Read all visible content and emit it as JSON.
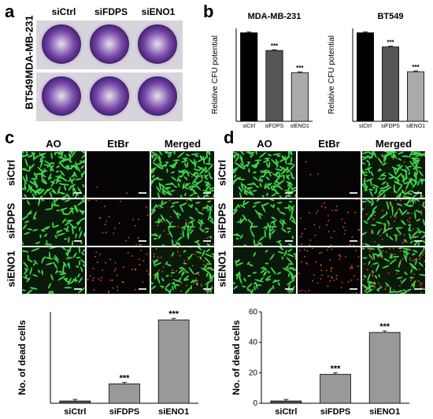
{
  "panels": {
    "a": "a",
    "b": "b",
    "c": "c",
    "d": "d"
  },
  "panel_a": {
    "columns": [
      "siCtrl",
      "siFDPS",
      "siENO1"
    ],
    "rows": [
      "MDA-MB-231",
      "BT549"
    ]
  },
  "panel_cd": {
    "columns": [
      "AO",
      "EtBr",
      "Merged"
    ],
    "rows": [
      "siCtrl",
      "siFDPS",
      "siENO1"
    ]
  },
  "chart_data": [
    {
      "id": "b1",
      "type": "bar",
      "title": "MDA-MB-231",
      "ylabel": "Relative CFU potential",
      "categories": [
        "siCtrl",
        "siFDPS",
        "siENO1"
      ],
      "values": [
        100,
        80,
        55
      ],
      "ylim": [
        0,
        105
      ],
      "colors": [
        "#000000",
        "#555555",
        "#aaaaaa"
      ],
      "annotations": [
        "",
        "***",
        "***"
      ]
    },
    {
      "id": "b2",
      "type": "bar",
      "title": "BT549",
      "ylabel": "Relative CFU potential",
      "categories": [
        "siCtrl",
        "siFDPS",
        "siENO1"
      ],
      "values": [
        100,
        84,
        56
      ],
      "ylim": [
        0,
        105
      ],
      "colors": [
        "#000000",
        "#555555",
        "#aaaaaa"
      ],
      "annotations": [
        "",
        "***",
        "***"
      ]
    },
    {
      "id": "c",
      "type": "bar",
      "title": "",
      "ylabel": "No. of dead cells",
      "categories": [
        "siCtrl",
        "siFDPS",
        "siENO1"
      ],
      "values": [
        1,
        8.5,
        36.5
      ],
      "ylim": [
        0,
        40
      ],
      "colors": [
        "#555555",
        "#999999",
        "#999999"
      ],
      "annotations": [
        "",
        "***",
        "***"
      ]
    },
    {
      "id": "d",
      "type": "bar",
      "title": "",
      "ylabel": "No. of dead cells",
      "categories": [
        "siCtrl",
        "siFDPS",
        "siENO1"
      ],
      "values": [
        1.5,
        19,
        46.5
      ],
      "ylim": [
        0,
        60
      ],
      "yticks": [
        0,
        20,
        40,
        60
      ],
      "colors": [
        "#555555",
        "#999999",
        "#999999"
      ],
      "annotations": [
        "",
        "***",
        "***"
      ]
    }
  ]
}
